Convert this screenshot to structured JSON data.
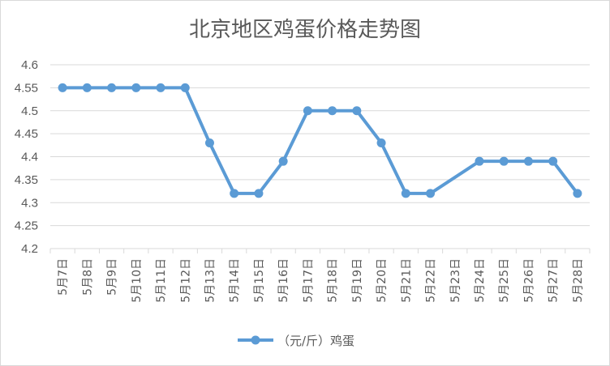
{
  "chart_data": {
    "type": "line",
    "title": "北京地区鸡蛋价格走势图",
    "categories": [
      "5月7日",
      "5月8日",
      "5月9日",
      "5月10日",
      "5月11日",
      "5月12日",
      "5月13日",
      "5月14日",
      "5月15日",
      "5月16日",
      "5月17日",
      "5月18日",
      "5月19日",
      "5月20日",
      "5月21日",
      "5月22日",
      "5月23日",
      "5月24日",
      "5月25日",
      "5月26日",
      "5月27日",
      "5月28日"
    ],
    "series": [
      {
        "name": "（元/斤）鸡蛋",
        "color": "#5b9bd5",
        "points": [
          {
            "x": "5月7日",
            "y": 4.55
          },
          {
            "x": "5月8日",
            "y": 4.55
          },
          {
            "x": "5月9日",
            "y": 4.55
          },
          {
            "x": "5月10日",
            "y": 4.55
          },
          {
            "x": "5月11日",
            "y": 4.55
          },
          {
            "x": "5月12日",
            "y": 4.55
          },
          {
            "x": "5月13日",
            "y": 4.43
          },
          {
            "x": "5月14日",
            "y": 4.32
          },
          {
            "x": "5月15日",
            "y": 4.32
          },
          {
            "x": "5月16日",
            "y": 4.39
          },
          {
            "x": "5月17日",
            "y": 4.5
          },
          {
            "x": "5月18日",
            "y": 4.5
          },
          {
            "x": "5月19日",
            "y": 4.5
          },
          {
            "x": "5月20日",
            "y": 4.43
          },
          {
            "x": "5月21日",
            "y": 4.32
          },
          {
            "x": "5月22日",
            "y": 4.32
          },
          {
            "x": "5月24日",
            "y": 4.39
          },
          {
            "x": "5月25日",
            "y": 4.39
          },
          {
            "x": "5月26日",
            "y": 4.39
          },
          {
            "x": "5月27日",
            "y": 4.39
          },
          {
            "x": "5月28日",
            "y": 4.32
          }
        ]
      }
    ],
    "ylim": [
      4.2,
      4.6
    ],
    "yticks": [
      "4.2",
      "4.25",
      "4.3",
      "4.35",
      "4.4",
      "4.45",
      "4.5",
      "4.55",
      "4.6"
    ],
    "grid": true,
    "legend": "bottom"
  }
}
